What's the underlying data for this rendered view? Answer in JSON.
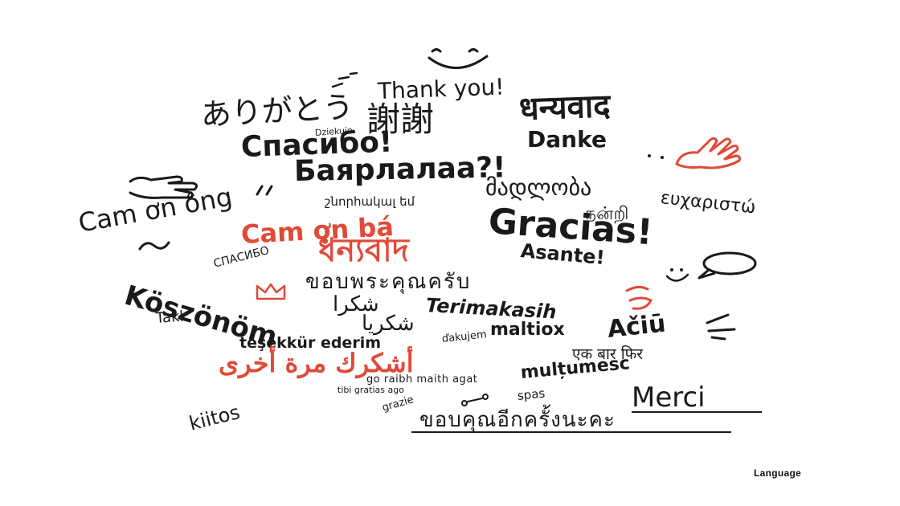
{
  "words": {
    "thank_you": "Thank you!",
    "arigatou": "ありがとう",
    "xiexie": "謝謝",
    "dhanyavaad_hi": "धन्यवाद",
    "dziekuje": "Dziekuje",
    "spasibo_big": "Спасибо!",
    "danke": "Danke",
    "bayarlalaa": "Баярлалаа?!",
    "madloba": "მადლობა",
    "armenian": "շնորհակալ եմ",
    "tamil": "நன்றி",
    "greek": "ευχαριστώ",
    "cam_on_ong": "Cam ơn ông",
    "cam_on_ba": "Cam ơn bá",
    "gracias": "Gracias!",
    "bengali": "ধন্যবাদ",
    "asante": "Asante!",
    "spasibo_small": "СПАСИБО",
    "thai_khop_khun": "ขอบพระคุณครับ",
    "koszonom": "Köszönöm",
    "shukran": "شكرا",
    "terimakasih": "Terimakasih",
    "takk": "Takk",
    "shukriya": "شكريا",
    "maltiox": "maltiox",
    "aciu": "Ačiū",
    "tesekkur": "teşekkür ederim",
    "dakujem": "ďakujem",
    "arabic_again": "أشكرك مرة أخرى",
    "hindi_again": "एक बार फिर",
    "irish": "go raibh maith agat",
    "multumesc": "mulțumesc",
    "latin": "tibi gratias ago",
    "merci": "Merci",
    "grazie": "grazie",
    "spas": "spas",
    "thai_again": "ขอบคุณอีกครั้งนะคะ",
    "kiitos": "kiitos"
  },
  "caption": "Language",
  "icons": {
    "smile": "smile-face-icon",
    "waving_hand_right": "waving-hand-icon",
    "waving_hand_left": "waving-hand-icon",
    "speech_bubble": "speech-bubble-icon",
    "crown": "crown-icon",
    "heart": "heart-doodle-icon"
  },
  "colors": {
    "ink": "#1a1a1a",
    "accent": "#e04a37"
  }
}
